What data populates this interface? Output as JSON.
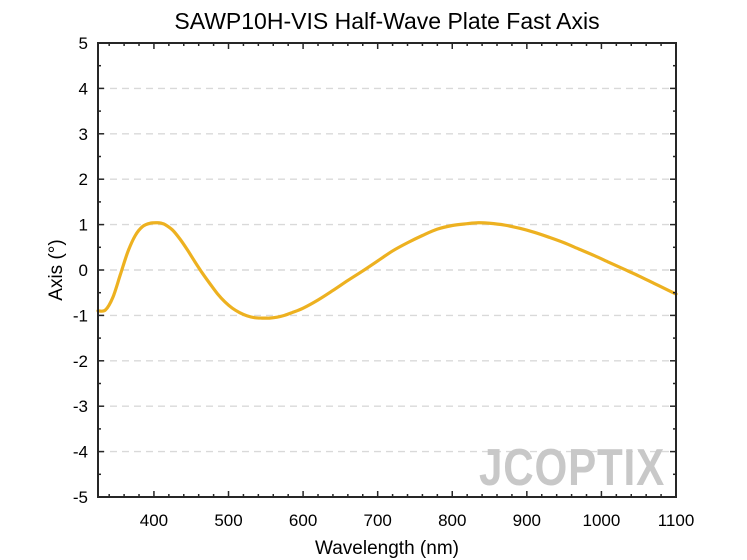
{
  "chart_data": {
    "type": "line",
    "title": "SAWP10H-VIS Half-Wave Plate Fast Axis",
    "xlabel": "Wavelength (nm)",
    "ylabel": "Axis (°)",
    "xlim": [
      325,
      1100
    ],
    "ylim": [
      -5,
      5
    ],
    "xticks": [
      400,
      500,
      600,
      700,
      800,
      900,
      1000,
      1100
    ],
    "yticks": [
      -5,
      -4,
      -3,
      -2,
      -1,
      0,
      1,
      2,
      3,
      4,
      5
    ],
    "grid": "horizontal dashed",
    "series": [
      {
        "color": "#EDB120",
        "x": [
          325,
          335,
          345,
          355,
          365,
          375,
          385,
          395,
          405,
          410,
          415,
          425,
          435,
          445,
          455,
          465,
          475,
          485,
          495,
          505,
          515,
          525,
          535,
          545,
          550,
          555,
          565,
          575,
          585,
          600,
          620,
          640,
          660,
          680,
          700,
          720,
          740,
          760,
          780,
          800,
          820,
          835,
          850,
          870,
          890,
          910,
          930,
          950,
          970,
          990,
          1010,
          1030,
          1050,
          1070,
          1090,
          1100
        ],
        "y": [
          -0.9,
          -0.88,
          -0.6,
          -0.1,
          0.4,
          0.76,
          0.96,
          1.03,
          1.04,
          1.03,
          1.0,
          0.88,
          0.68,
          0.44,
          0.18,
          -0.07,
          -0.3,
          -0.52,
          -0.7,
          -0.84,
          -0.94,
          -1.01,
          -1.05,
          -1.06,
          -1.06,
          -1.06,
          -1.04,
          -1.0,
          -0.94,
          -0.84,
          -0.66,
          -0.45,
          -0.23,
          -0.02,
          0.2,
          0.42,
          0.6,
          0.76,
          0.9,
          0.98,
          1.02,
          1.04,
          1.03,
          0.99,
          0.92,
          0.83,
          0.72,
          0.6,
          0.46,
          0.32,
          0.17,
          0.02,
          -0.13,
          -0.29,
          -0.45,
          -0.53
        ]
      }
    ]
  },
  "watermark": {
    "text": "JCOPTIX",
    "color": "#c8c8c8"
  }
}
